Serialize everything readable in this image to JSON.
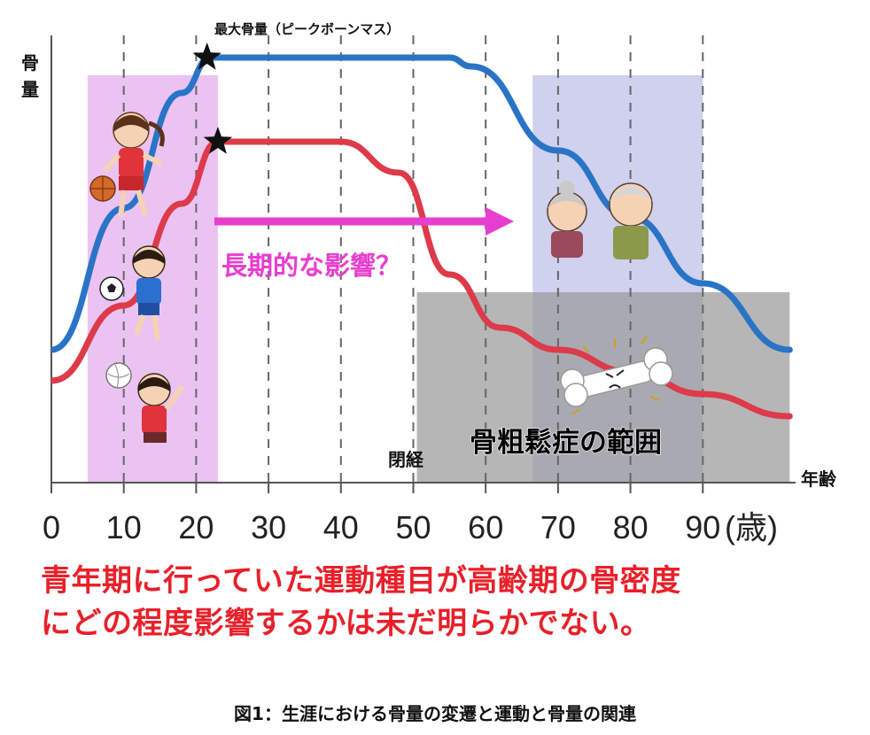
{
  "chart_data": {
    "type": "line",
    "title": "最大骨量（ピークボーンマス）",
    "ylabel": "骨量",
    "xlabel": "年齢",
    "x_unit": "(歳)",
    "xlim": [
      0,
      102
    ],
    "ylim": [
      0,
      100
    ],
    "x_ticks": [
      0,
      10,
      20,
      30,
      40,
      50,
      60,
      70,
      80,
      90
    ],
    "grid": "vertical dashed",
    "series": [
      {
        "color": "#2a74c6",
        "x": [
          0,
          10,
          18,
          22,
          55,
          58,
          70,
          80,
          90,
          102
        ],
        "y": [
          30,
          62,
          88,
          96,
          96,
          94,
          75,
          60,
          45,
          30
        ]
      },
      {
        "color": "#dd3a4a",
        "x": [
          0,
          10,
          18,
          23,
          40,
          48,
          55,
          62,
          70,
          80,
          90,
          102
        ],
        "y": [
          23,
          40,
          63,
          77,
          77,
          70,
          47,
          35,
          30,
          25,
          20,
          15
        ]
      }
    ],
    "peak_markers": [
      {
        "series": 0,
        "x": 21.5,
        "y": 96
      },
      {
        "series": 1,
        "x": 23,
        "y": 77
      }
    ],
    "regions": [
      {
        "label": "",
        "x": [
          5,
          23
        ],
        "y": [
          0,
          92
        ],
        "color": "#e8b8f0"
      },
      {
        "label": "",
        "x": [
          66.5,
          90
        ],
        "y": [
          0,
          92
        ],
        "color": "#c8c8ec"
      },
      {
        "label": "骨粗鬆症の範囲",
        "x": [
          50.5,
          102
        ],
        "y": [
          0,
          43
        ],
        "color": "#9a9a9a"
      }
    ],
    "annotations": [
      {
        "text": "長期的な影響？",
        "color": "#e83ed0"
      },
      {
        "text": "閉経",
        "color": "#111111"
      }
    ]
  },
  "notes": [
    "青年期に行っていた運動種目が高齢期の骨密度",
    "にどの程度影響するかは未だ明らかでない。"
  ],
  "caption": "図1：生涯における骨量の変遷と運動と骨量の関連",
  "icons": [
    "girl-basketball-icon",
    "boy-soccer-icon",
    "girl-volleyball-icon",
    "elderly-couple-icon",
    "bone-icon"
  ]
}
